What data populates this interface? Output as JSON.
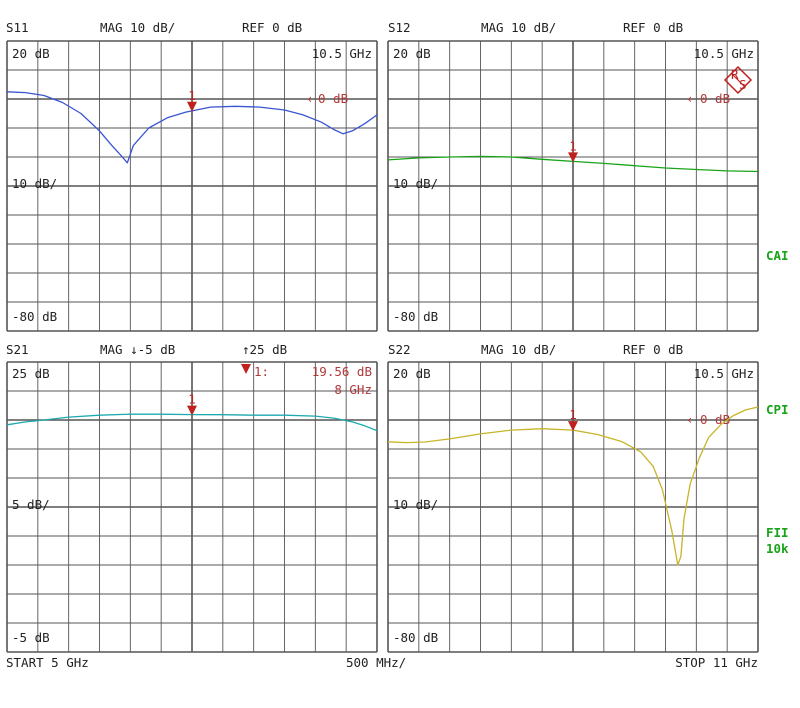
{
  "colors": {
    "grid": "#555555",
    "marker": "#c0201e",
    "marker_text": "#b23a3a",
    "side_label": "#18a418"
  },
  "side_labels": [
    "CAI",
    "CPI",
    "FII",
    "10k"
  ],
  "footer": {
    "start": "START  5 GHz",
    "span": "500 MHz/",
    "stop": "STOP 11 GHz"
  },
  "rs_logo": {
    "letters": [
      "R",
      "S"
    ]
  },
  "chart_data": [
    {
      "type": "line",
      "param": "S11",
      "header": {
        "param": "S11",
        "scale": "MAG 10 dB/",
        "ref": "REF 0 dB"
      },
      "labels": {
        "top": "20 dB",
        "mid": "10 dB/",
        "bottom": "-80 dB",
        "corner": "10.5 GHz",
        "ref_marker": "0 dB"
      },
      "xlim": [
        5,
        11
      ],
      "ylim": [
        -80,
        20
      ],
      "color": "#3a55d0",
      "marker": {
        "label": "1",
        "x": 8
      },
      "series": [
        {
          "x": [
            5.0,
            5.3,
            5.6,
            5.9,
            6.2,
            6.5,
            6.7,
            6.85,
            6.95,
            7.05,
            7.3,
            7.6,
            7.9,
            8.3,
            8.7,
            9.1,
            9.5,
            9.8,
            10.1,
            10.3,
            10.45,
            10.6,
            10.8,
            11.0
          ],
          "y": [
            2.5,
            2.2,
            1.2,
            -1.2,
            -5,
            -11,
            -16,
            -19.5,
            -22,
            -16,
            -10,
            -6.5,
            -4.5,
            -2.8,
            -2.5,
            -2.8,
            -3.8,
            -5.5,
            -8,
            -10.5,
            -12,
            -11,
            -8.5,
            -5.5
          ]
        }
      ]
    },
    {
      "type": "line",
      "param": "S12",
      "header": {
        "param": "S12",
        "scale": "MAG 10 dB/",
        "ref": "REF 0 dB"
      },
      "labels": {
        "top": "20 dB",
        "mid": "10 dB/",
        "bottom": "-80 dB",
        "corner": "10.5 GHz",
        "ref_marker": "0 dB"
      },
      "xlim": [
        5,
        11
      ],
      "ylim": [
        -80,
        20
      ],
      "color": "#18a418",
      "marker": {
        "label": "1",
        "x": 8
      },
      "series": [
        {
          "x": [
            5.0,
            5.5,
            6.0,
            6.5,
            7.0,
            7.5,
            8.0,
            8.5,
            9.0,
            9.5,
            10.0,
            10.5,
            11.0
          ],
          "y": [
            -21,
            -20.3,
            -20,
            -19.8,
            -20,
            -20.8,
            -21.5,
            -22.2,
            -23,
            -23.8,
            -24.3,
            -24.8,
            -25
          ]
        }
      ]
    },
    {
      "type": "line",
      "param": "S21",
      "header": {
        "param": "S21",
        "scale": "MAG ↓-5 dB",
        "ref": "↑25 dB"
      },
      "labels": {
        "top": "25 dB",
        "mid": "5 dB/",
        "bottom": "-5 dB"
      },
      "marker_readout": {
        "label": "1:",
        "value": "19.56 dB",
        "freq": "8 GHz"
      },
      "xlim": [
        5,
        11
      ],
      "ylim": [
        -5,
        25
      ],
      "color": "#1ea9b0",
      "marker": {
        "label": "1",
        "x": 8
      },
      "series": [
        {
          "x": [
            5.0,
            5.3,
            5.6,
            6.0,
            6.5,
            7.0,
            7.5,
            8.0,
            8.5,
            9.0,
            9.5,
            10.0,
            10.3,
            10.6,
            10.8,
            11.0
          ],
          "y": [
            18.5,
            18.8,
            19.0,
            19.3,
            19.5,
            19.6,
            19.6,
            19.56,
            19.55,
            19.5,
            19.5,
            19.4,
            19.2,
            18.8,
            18.4,
            17.9
          ]
        }
      ]
    },
    {
      "type": "line",
      "param": "S22",
      "header": {
        "param": "S22",
        "scale": "MAG 10 dB/",
        "ref": "REF 0 dB"
      },
      "labels": {
        "top": "20 dB",
        "mid": "10 dB/",
        "bottom": "-80 dB",
        "corner": "10.5 GHz",
        "ref_marker": "0 dB"
      },
      "xlim": [
        5,
        11
      ],
      "ylim": [
        -80,
        20
      ],
      "color": "#c8b428",
      "marker": {
        "label": "1",
        "x": 8
      },
      "series": [
        {
          "x": [
            5.0,
            5.3,
            5.6,
            6.0,
            6.5,
            7.0,
            7.5,
            8.0,
            8.4,
            8.8,
            9.1,
            9.3,
            9.45,
            9.6,
            9.7,
            9.75,
            9.8,
            9.9,
            10.05,
            10.2,
            10.4,
            10.6,
            10.8,
            11.0
          ],
          "y": [
            -7.5,
            -7.8,
            -7.6,
            -6.5,
            -4.8,
            -3.5,
            -3.0,
            -3.5,
            -5,
            -7.5,
            -11,
            -16,
            -24,
            -38,
            -50,
            -47,
            -34,
            -22,
            -13,
            -6,
            -1.5,
            1.5,
            3.5,
            4.5
          ]
        }
      ]
    }
  ]
}
